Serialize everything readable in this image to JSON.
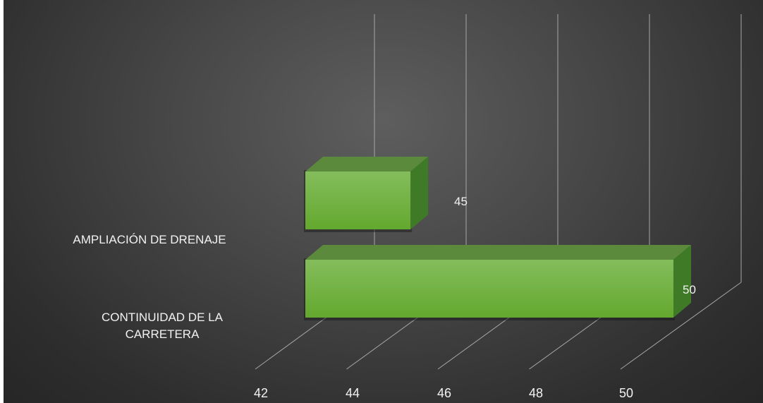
{
  "chart_data": {
    "type": "bar",
    "orientation": "horizontal",
    "style": "3d",
    "categories": [
      "AMPLIACIÓN DE DRENAJE",
      "CONTINUIDAD DE LA CARRETERA"
    ],
    "values": [
      45,
      50
    ],
    "data_labels": [
      "45",
      "50"
    ],
    "xlim": [
      42,
      50
    ],
    "ticks": [
      "42",
      "44",
      "46",
      "48",
      "50"
    ],
    "grid": true,
    "legend": "none",
    "colors": {
      "bar_front": "#70b340",
      "bar_top": "#5c8a3c",
      "bar_side": "#3f7a26",
      "background": "#474747",
      "gridline": "#a6a6a6",
      "text": "#f2f2f2"
    }
  }
}
